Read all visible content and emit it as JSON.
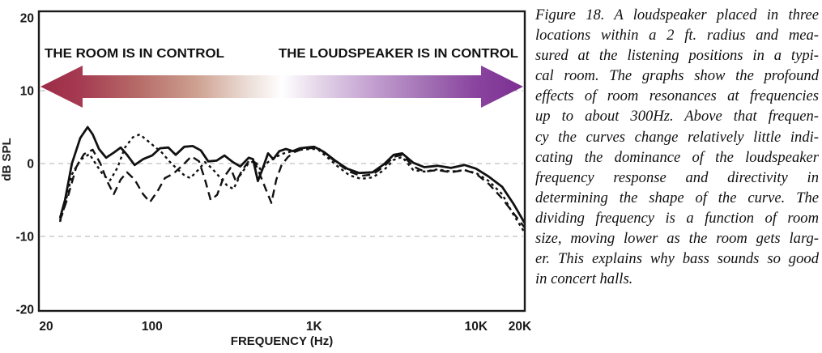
{
  "figure": {
    "annotations": {
      "left": "THE ROOM IS IN CONTROL",
      "right": "THE LOUDSPEAKER IS IN CONTROL"
    },
    "arrow_colors": {
      "left_head": "#9d2c47",
      "mid": "#ffffff",
      "right_head": "#7c2f92"
    }
  },
  "chart_data": {
    "type": "line",
    "title": "",
    "xlabel": "FREQUENCY (Hz)",
    "ylabel": "dB SPL",
    "x_scale": "log",
    "xlim": [
      20,
      20000
    ],
    "ylim": [
      -20,
      20
    ],
    "grid": "dashed horizontal at 10, 0, -10 dB",
    "gridlines_db": [
      10,
      0,
      -10
    ],
    "x_ticks": [
      {
        "value": 20,
        "label": "20"
      },
      {
        "value": 100,
        "label": "100"
      },
      {
        "value": 1000,
        "label": "1K"
      },
      {
        "value": 10000,
        "label": "10K"
      },
      {
        "value": 20000,
        "label": "20K"
      }
    ],
    "y_ticks": [
      {
        "value": 20,
        "label": "20"
      },
      {
        "value": 10,
        "label": "10"
      },
      {
        "value": 0,
        "label": "0"
      },
      {
        "value": -10,
        "label": "-10"
      },
      {
        "value": -20,
        "label": "-20"
      }
    ],
    "legend_position": "none",
    "series": [
      {
        "name": "speaker-location-1",
        "style": "solid",
        "points": [
          [
            27,
            -7.5
          ],
          [
            29,
            -5
          ],
          [
            32,
            0
          ],
          [
            36,
            3.5
          ],
          [
            40,
            5
          ],
          [
            43,
            4
          ],
          [
            47,
            2
          ],
          [
            52,
            0.8
          ],
          [
            58,
            1.5
          ],
          [
            64,
            2.2
          ],
          [
            70,
            1.2
          ],
          [
            78,
            -0.2
          ],
          [
            88,
            0.6
          ],
          [
            100,
            1.1
          ],
          [
            112,
            2.1
          ],
          [
            126,
            2.2
          ],
          [
            140,
            1.2
          ],
          [
            158,
            2.3
          ],
          [
            178,
            2.4
          ],
          [
            200,
            1.8
          ],
          [
            222,
            0.3
          ],
          [
            250,
            0.4
          ],
          [
            280,
            1.1
          ],
          [
            315,
            0.2
          ],
          [
            350,
            -0.4
          ],
          [
            395,
            0.8
          ],
          [
            420,
            0.6
          ],
          [
            450,
            -2.4
          ],
          [
            480,
            -0.8
          ],
          [
            520,
            1.4
          ],
          [
            560,
            0.6
          ],
          [
            610,
            1.7
          ],
          [
            670,
            2
          ],
          [
            740,
            1.7
          ],
          [
            820,
            2.1
          ],
          [
            900,
            2.2
          ],
          [
            1000,
            2.3
          ],
          [
            1150,
            1.6
          ],
          [
            1350,
            0.4
          ],
          [
            1600,
            -0.7
          ],
          [
            1900,
            -1.3
          ],
          [
            2300,
            -1.2
          ],
          [
            2700,
            -0.1
          ],
          [
            3100,
            1.2
          ],
          [
            3500,
            1.4
          ],
          [
            4100,
            0.1
          ],
          [
            4800,
            -0.5
          ],
          [
            5800,
            -0.3
          ],
          [
            7000,
            -0.6
          ],
          [
            8500,
            -0.2
          ],
          [
            10000,
            -0.7
          ],
          [
            12000,
            -1.8
          ],
          [
            14500,
            -3.2
          ],
          [
            17000,
            -5.5
          ],
          [
            20000,
            -8.2
          ]
        ]
      },
      {
        "name": "speaker-location-2",
        "style": "long-dash",
        "points": [
          [
            27,
            -7.8
          ],
          [
            30,
            -4.8
          ],
          [
            34,
            -0.5
          ],
          [
            38,
            1.3
          ],
          [
            43,
            1.9
          ],
          [
            48,
            0
          ],
          [
            53,
            -2.5
          ],
          [
            58,
            -4.2
          ],
          [
            64,
            -2.2
          ],
          [
            70,
            -1.2
          ],
          [
            78,
            -2.2
          ],
          [
            88,
            -4.2
          ],
          [
            97,
            -5.3
          ],
          [
            108,
            -3.8
          ],
          [
            120,
            -2
          ],
          [
            135,
            -1.4
          ],
          [
            155,
            -0.2
          ],
          [
            175,
            1
          ],
          [
            195,
            0.3
          ],
          [
            212,
            -2.2
          ],
          [
            230,
            -5
          ],
          [
            252,
            -4.3
          ],
          [
            275,
            -2
          ],
          [
            305,
            -0.6
          ],
          [
            330,
            -2.5
          ],
          [
            360,
            -0.9
          ],
          [
            400,
            0.5
          ],
          [
            430,
            0.2
          ],
          [
            465,
            -1.6
          ],
          [
            505,
            -3.6
          ],
          [
            545,
            -5.4
          ],
          [
            585,
            -2.2
          ],
          [
            630,
            -0.2
          ],
          [
            690,
            0.9
          ],
          [
            760,
            1.6
          ],
          [
            850,
            2
          ],
          [
            950,
            2.1
          ],
          [
            1050,
            2.2
          ],
          [
            1200,
            1.2
          ],
          [
            1400,
            0
          ],
          [
            1650,
            -1.1
          ],
          [
            1950,
            -1.7
          ],
          [
            2300,
            -1.5
          ],
          [
            2700,
            -0.4
          ],
          [
            3100,
            0.9
          ],
          [
            3500,
            1.2
          ],
          [
            4100,
            -0.4
          ],
          [
            4800,
            -1.1
          ],
          [
            5800,
            -0.9
          ],
          [
            7000,
            -1.2
          ],
          [
            8500,
            -0.9
          ],
          [
            10000,
            -1.4
          ],
          [
            12000,
            -2.8
          ],
          [
            14500,
            -4.8
          ],
          [
            17000,
            -6.8
          ],
          [
            20000,
            -8.8
          ]
        ]
      },
      {
        "name": "speaker-location-3",
        "style": "short-dash",
        "points": [
          [
            27,
            -8
          ],
          [
            29,
            -5.6
          ],
          [
            32,
            -1.5
          ],
          [
            36,
            0.5
          ],
          [
            41,
            1.3
          ],
          [
            46,
            -0.4
          ],
          [
            50,
            -1.6
          ],
          [
            55,
            -2.3
          ],
          [
            61,
            -0.6
          ],
          [
            68,
            2.2
          ],
          [
            76,
            3.6
          ],
          [
            84,
            4
          ],
          [
            93,
            3.2
          ],
          [
            104,
            2.3
          ],
          [
            115,
            1.5
          ],
          [
            128,
            0.3
          ],
          [
            142,
            -0.7
          ],
          [
            158,
            -1.6
          ],
          [
            172,
            -2
          ],
          [
            192,
            -0.9
          ],
          [
            212,
            0.2
          ],
          [
            235,
            -0.7
          ],
          [
            260,
            -1.8
          ],
          [
            290,
            -3
          ],
          [
            318,
            -3.5
          ],
          [
            350,
            -1.6
          ],
          [
            390,
            -0.1
          ],
          [
            430,
            0.4
          ],
          [
            470,
            -0.9
          ],
          [
            520,
            0.2
          ],
          [
            580,
            0.9
          ],
          [
            650,
            1.4
          ],
          [
            740,
            1.7
          ],
          [
            830,
            1.9
          ],
          [
            950,
            2
          ],
          [
            1050,
            2
          ],
          [
            1200,
            0.9
          ],
          [
            1400,
            -0.4
          ],
          [
            1650,
            -1.6
          ],
          [
            1950,
            -2.1
          ],
          [
            2300,
            -1.9
          ],
          [
            2700,
            -0.9
          ],
          [
            3100,
            0.5
          ],
          [
            3500,
            0.9
          ],
          [
            4100,
            -0.9
          ],
          [
            4800,
            -1.1
          ],
          [
            5800,
            -0.8
          ],
          [
            7000,
            -1.1
          ],
          [
            8500,
            -0.9
          ],
          [
            10000,
            -1.3
          ],
          [
            12000,
            -2.4
          ],
          [
            14500,
            -4.2
          ],
          [
            17000,
            -7
          ],
          [
            20000,
            -9.5
          ]
        ]
      }
    ]
  },
  "caption": {
    "lines": [
      "Figure 18. A loudspeaker placed in three",
      "locations within a 2 ft. radius and mea-",
      "sured at the listening positions in a typi-",
      "cal room. The graphs show the profound",
      "effects of room resonances at frequencies",
      "up to about 300Hz. Above that frequen-",
      "cy the curves change relatively little indi-",
      "cating the dominance of the loudspeaker",
      "frequency response and directivity in",
      "determining the shape of the curve. The",
      "dividing frequency is a function of room",
      "size, moving lower as the room gets larg-",
      "er. This explains why bass sounds so good",
      "in concert halls."
    ],
    "full_text": "Figure 18. A loudspeaker placed in three locations within a 2 ft. radius and measured at the listening positions in a typical room. The graphs show the profound effects of room resonances at frequencies up to about 300Hz. Above that frequency the curves change relatively little indicating the dominance of the loudspeaker frequency response and directivity in determining the shape of the curve. The dividing frequency is a function of room size, moving lower as the room gets larger. This explains why bass sounds so good in concert halls."
  }
}
